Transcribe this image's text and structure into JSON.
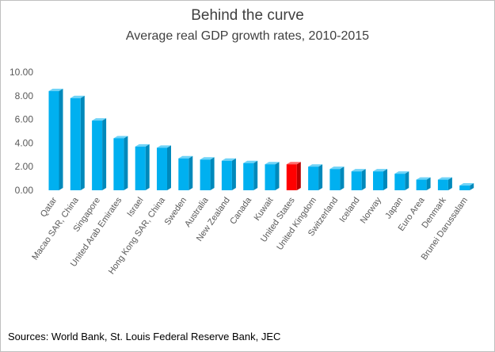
{
  "chart_data": {
    "type": "bar",
    "title": "Behind the curve",
    "subtitle": "Average real GDP growth rates, 2010-2015",
    "source": "Sources: World Bank, St. Louis Federal Reserve Bank, JEC",
    "categories": [
      "Qatar",
      "Macao SAR, China",
      "Singapore",
      "United Arab Emirates",
      "Israel",
      "Hong Kong SAR, China",
      "Sweden",
      "Australia",
      "New Zealand",
      "Canada",
      "Kuwait",
      "United States",
      "United Kingdom",
      "Switzerland",
      "Iceland",
      "Norway",
      "Japan",
      "Euro Area",
      "Denmark",
      "Brunei Darussalam"
    ],
    "values": [
      8.4,
      7.8,
      5.9,
      4.4,
      3.7,
      3.6,
      2.7,
      2.6,
      2.5,
      2.3,
      2.2,
      2.2,
      2.0,
      1.8,
      1.6,
      1.6,
      1.4,
      0.9,
      0.9,
      0.4
    ],
    "highlight_category": "United States",
    "ylim": [
      0,
      10
    ],
    "yticks": [
      "0.00",
      "2.00",
      "4.00",
      "6.00",
      "8.00",
      "10.00"
    ],
    "ytick_values": [
      0,
      2,
      4,
      6,
      8,
      10
    ],
    "grid": false,
    "legend": "none",
    "colors": {
      "bar": "#00b0f0",
      "bar_side": "#0089bb",
      "bar_top": "#6fd3f7",
      "highlight": "#ff0000",
      "highlight_side": "#b80000",
      "highlight_top": "#ff6b6b",
      "axis_text": "#595959"
    }
  }
}
